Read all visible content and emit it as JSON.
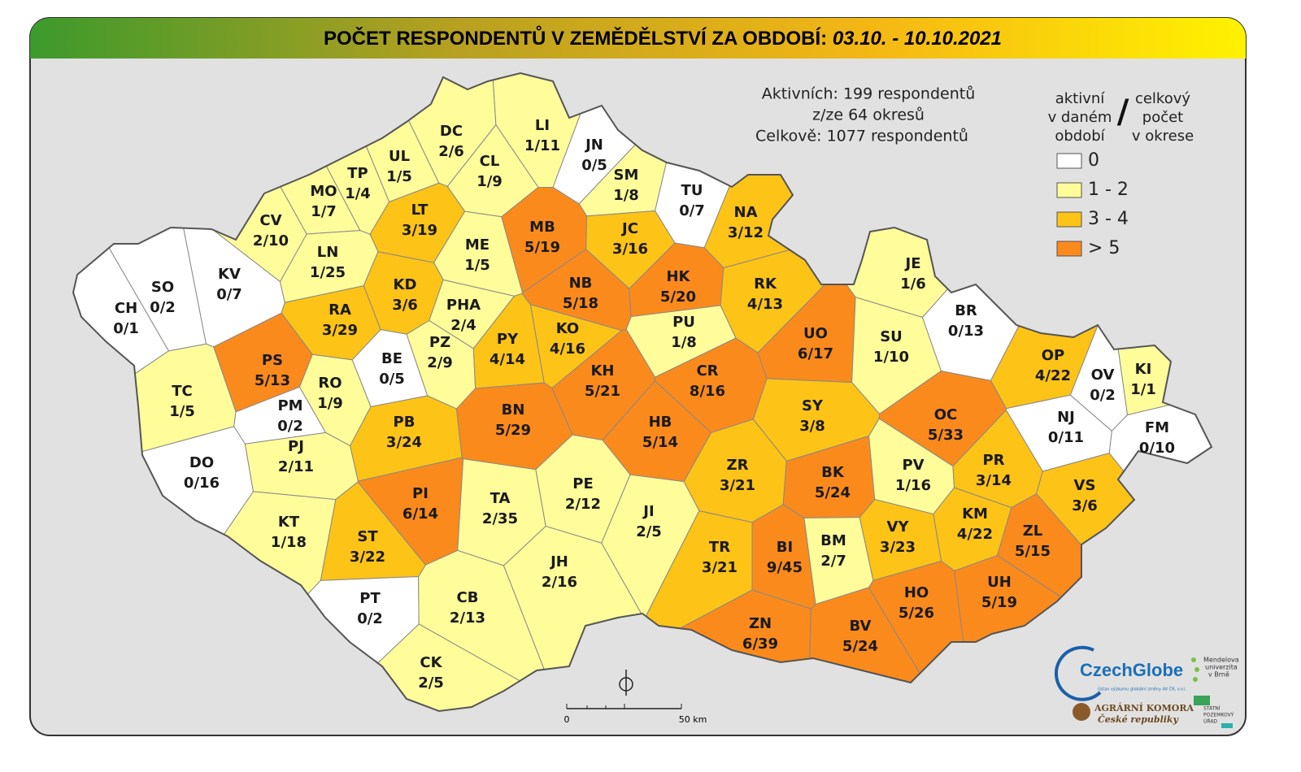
{
  "title": {
    "main": "POČET RESPONDENTŮ V ZEMĚDĚLSTVÍ ZA OBDOBÍ:",
    "period": "03.10. - 10.10.2021"
  },
  "stats": [
    "Aktivních: 199 respondentů",
    "z/ze 64 okresů",
    "Celkově: 1077 respondentů"
  ],
  "legend": {
    "heading_active": [
      "aktivní",
      "v daném",
      "období"
    ],
    "separator": "/",
    "heading_total": [
      "celkový",
      "počet",
      "v okrese"
    ],
    "items": [
      {
        "label": "0",
        "color": "#ffffff"
      },
      {
        "label": "1 - 2",
        "color": "#fffd9a"
      },
      {
        "label": "3 - 4",
        "color": "#fdc316"
      },
      {
        "label": "> 5",
        "color": "#fb8a1c"
      }
    ]
  },
  "scale": {
    "start": "0",
    "end": "50 km"
  },
  "logos": {
    "czechglobe": "CzechGlobe",
    "czechglobe_sub": "Ústav výzkumu globální změny AV ČR, v.v.i.",
    "mendelu": [
      "Mendelova",
      "univerzita",
      "v Brně"
    ],
    "komora": [
      "AGRÁRNÍ KOMORA",
      "České republiky"
    ],
    "spu": [
      "STÁTNÍ",
      "POZEMKOVÝ",
      "ÚŘAD"
    ]
  },
  "districts": [
    {
      "code": "CH",
      "label": "0/1",
      "active": 0,
      "total": 1,
      "color": "#ffffff"
    },
    {
      "code": "SO",
      "label": "0/2",
      "active": 0,
      "total": 2,
      "color": "#ffffff"
    },
    {
      "code": "KV",
      "label": "0/7",
      "active": 0,
      "total": 7,
      "color": "#ffffff"
    },
    {
      "code": "CV",
      "label": "2/10",
      "active": 2,
      "total": 10,
      "color": "#fffd9a"
    },
    {
      "code": "MO",
      "label": "1/7",
      "active": 1,
      "total": 7,
      "color": "#fffd9a"
    },
    {
      "code": "TP",
      "label": "1/4",
      "active": 1,
      "total": 4,
      "color": "#fffd9a"
    },
    {
      "code": "UL",
      "label": "1/5",
      "active": 1,
      "total": 5,
      "color": "#fffd9a"
    },
    {
      "code": "DC",
      "label": "2/6",
      "active": 2,
      "total": 6,
      "color": "#fffd9a"
    },
    {
      "code": "LI",
      "label": "1/11",
      "active": 1,
      "total": 11,
      "color": "#fffd9a"
    },
    {
      "code": "JN",
      "label": "0/5",
      "active": 0,
      "total": 5,
      "color": "#ffffff"
    },
    {
      "code": "CL",
      "label": "1/9",
      "active": 1,
      "total": 9,
      "color": "#fffd9a"
    },
    {
      "code": "SM",
      "label": "1/8",
      "active": 1,
      "total": 8,
      "color": "#fffd9a"
    },
    {
      "code": "TU",
      "label": "0/7",
      "active": 0,
      "total": 7,
      "color": "#ffffff"
    },
    {
      "code": "NA",
      "label": "3/12",
      "active": 3,
      "total": 12,
      "color": "#fdc316"
    },
    {
      "code": "LT",
      "label": "3/19",
      "active": 3,
      "total": 19,
      "color": "#fdc316"
    },
    {
      "code": "MB",
      "label": "5/19",
      "active": 5,
      "total": 19,
      "color": "#fb8a1c"
    },
    {
      "code": "JC",
      "label": "3/16",
      "active": 3,
      "total": 16,
      "color": "#fdc316"
    },
    {
      "code": "LN",
      "label": "1/25",
      "active": 1,
      "total": 25,
      "color": "#fffd9a"
    },
    {
      "code": "ME",
      "label": "1/5",
      "active": 1,
      "total": 5,
      "color": "#fffd9a"
    },
    {
      "code": "KD",
      "label": "3/6",
      "active": 3,
      "total": 6,
      "color": "#fdc316"
    },
    {
      "code": "NB",
      "label": "5/18",
      "active": 5,
      "total": 18,
      "color": "#fb8a1c"
    },
    {
      "code": "HK",
      "label": "5/20",
      "active": 5,
      "total": 20,
      "color": "#fb8a1c"
    },
    {
      "code": "RK",
      "label": "4/13",
      "active": 4,
      "total": 13,
      "color": "#fdc316"
    },
    {
      "code": "JE",
      "label": "1/6",
      "active": 1,
      "total": 6,
      "color": "#fffd9a"
    },
    {
      "code": "RA",
      "label": "3/29",
      "active": 3,
      "total": 29,
      "color": "#fdc316"
    },
    {
      "code": "PHA",
      "label": "2/4",
      "active": 2,
      "total": 4,
      "color": "#fffd9a"
    },
    {
      "code": "KO",
      "label": "4/16",
      "active": 4,
      "total": 16,
      "color": "#fdc316"
    },
    {
      "code": "PU",
      "label": "1/8",
      "active": 1,
      "total": 8,
      "color": "#fffd9a"
    },
    {
      "code": "UO",
      "label": "6/17",
      "active": 6,
      "total": 17,
      "color": "#fb8a1c"
    },
    {
      "code": "SU",
      "label": "1/10",
      "active": 1,
      "total": 10,
      "color": "#fffd9a"
    },
    {
      "code": "BR",
      "label": "0/13",
      "active": 0,
      "total": 13,
      "color": "#ffffff"
    },
    {
      "code": "OP",
      "label": "4/22",
      "active": 4,
      "total": 22,
      "color": "#fdc316"
    },
    {
      "code": "KI",
      "label": "1/1",
      "active": 1,
      "total": 1,
      "color": "#fffd9a"
    },
    {
      "code": "OC",
      "label": "5/33",
      "active": 5,
      "total": 33,
      "color": "#fb8a1c"
    },
    {
      "code": "PS",
      "label": "5/13",
      "active": 5,
      "total": 13,
      "color": "#fb8a1c"
    },
    {
      "code": "TC",
      "label": "1/5",
      "active": 1,
      "total": 5,
      "color": "#fffd9a"
    },
    {
      "code": "PM",
      "label": "0/2",
      "active": 0,
      "total": 2,
      "color": "#ffffff"
    },
    {
      "code": "RO",
      "label": "1/9",
      "active": 1,
      "total": 9,
      "color": "#fffd9a"
    },
    {
      "code": "BE",
      "label": "0/5",
      "active": 0,
      "total": 5,
      "color": "#ffffff"
    },
    {
      "code": "PZ",
      "label": "2/9",
      "active": 2,
      "total": 9,
      "color": "#fffd9a"
    },
    {
      "code": "PY",
      "label": "4/14",
      "active": 4,
      "total": 14,
      "color": "#fdc316"
    },
    {
      "code": "KH",
      "label": "5/21",
      "active": 5,
      "total": 21,
      "color": "#fb8a1c"
    },
    {
      "code": "CR",
      "label": "8/16",
      "active": 8,
      "total": 16,
      "color": "#fb8a1c"
    },
    {
      "code": "SY",
      "label": "3/8",
      "active": 3,
      "total": 8,
      "color": "#fdc316"
    },
    {
      "code": "NJ",
      "label": "0/11",
      "active": 0,
      "total": 11,
      "color": "#ffffff"
    },
    {
      "code": "OV",
      "label": "0/2",
      "active": 0,
      "total": 2,
      "color": "#ffffff"
    },
    {
      "code": "FM",
      "label": "0/10",
      "active": 0,
      "total": 10,
      "color": "#ffffff"
    },
    {
      "code": "DO",
      "label": "0/16",
      "active": 0,
      "total": 16,
      "color": "#ffffff"
    },
    {
      "code": "PJ",
      "label": "2/11",
      "active": 2,
      "total": 11,
      "color": "#fffd9a"
    },
    {
      "code": "PB",
      "label": "3/24",
      "active": 3,
      "total": 24,
      "color": "#fdc316"
    },
    {
      "code": "BN",
      "label": "5/29",
      "active": 5,
      "total": 29,
      "color": "#fb8a1c"
    },
    {
      "code": "HB",
      "label": "5/14",
      "active": 5,
      "total": 14,
      "color": "#fb8a1c"
    },
    {
      "code": "ZR",
      "label": "3/21",
      "active": 3,
      "total": 21,
      "color": "#fdc316"
    },
    {
      "code": "BK",
      "label": "5/24",
      "active": 5,
      "total": 24,
      "color": "#fb8a1c"
    },
    {
      "code": "PV",
      "label": "1/16",
      "active": 1,
      "total": 16,
      "color": "#fffd9a"
    },
    {
      "code": "PR",
      "label": "3/14",
      "active": 3,
      "total": 14,
      "color": "#fdc316"
    },
    {
      "code": "VS",
      "label": "3/6",
      "active": 3,
      "total": 6,
      "color": "#fdc316"
    },
    {
      "code": "KT",
      "label": "1/18",
      "active": 1,
      "total": 18,
      "color": "#fffd9a"
    },
    {
      "code": "ST",
      "label": "3/22",
      "active": 3,
      "total": 22,
      "color": "#fdc316"
    },
    {
      "code": "PI",
      "label": "6/14",
      "active": 6,
      "total": 14,
      "color": "#fb8a1c"
    },
    {
      "code": "TA",
      "label": "2/35",
      "active": 2,
      "total": 35,
      "color": "#fffd9a"
    },
    {
      "code": "PE",
      "label": "2/12",
      "active": 2,
      "total": 12,
      "color": "#fffd9a"
    },
    {
      "code": "JI",
      "label": "2/5",
      "active": 2,
      "total": 5,
      "color": "#fffd9a"
    },
    {
      "code": "TR",
      "label": "3/21",
      "active": 3,
      "total": 21,
      "color": "#fdc316"
    },
    {
      "code": "BI",
      "label": "9/45",
      "active": 9,
      "total": 45,
      "color": "#fb8a1c"
    },
    {
      "code": "BM",
      "label": "2/7",
      "active": 2,
      "total": 7,
      "color": "#fffd9a"
    },
    {
      "code": "VY",
      "label": "3/23",
      "active": 3,
      "total": 23,
      "color": "#fdc316"
    },
    {
      "code": "KM",
      "label": "4/22",
      "active": 4,
      "total": 22,
      "color": "#fdc316"
    },
    {
      "code": "ZL",
      "label": "5/15",
      "active": 5,
      "total": 15,
      "color": "#fb8a1c"
    },
    {
      "code": "JH",
      "label": "2/16",
      "active": 2,
      "total": 16,
      "color": "#fffd9a"
    },
    {
      "code": "HO",
      "label": "5/26",
      "active": 5,
      "total": 26,
      "color": "#fb8a1c"
    },
    {
      "code": "UH",
      "label": "5/19",
      "active": 5,
      "total": 19,
      "color": "#fb8a1c"
    },
    {
      "code": "PT",
      "label": "0/2",
      "active": 0,
      "total": 2,
      "color": "#ffffff"
    },
    {
      "code": "CB",
      "label": "2/13",
      "active": 2,
      "total": 13,
      "color": "#fffd9a"
    },
    {
      "code": "ZN",
      "label": "6/39",
      "active": 6,
      "total": 39,
      "color": "#fb8a1c"
    },
    {
      "code": "BV",
      "label": "5/24",
      "active": 5,
      "total": 24,
      "color": "#fb8a1c"
    },
    {
      "code": "CK",
      "label": "2/5",
      "active": 2,
      "total": 5,
      "color": "#fffd9a"
    }
  ]
}
